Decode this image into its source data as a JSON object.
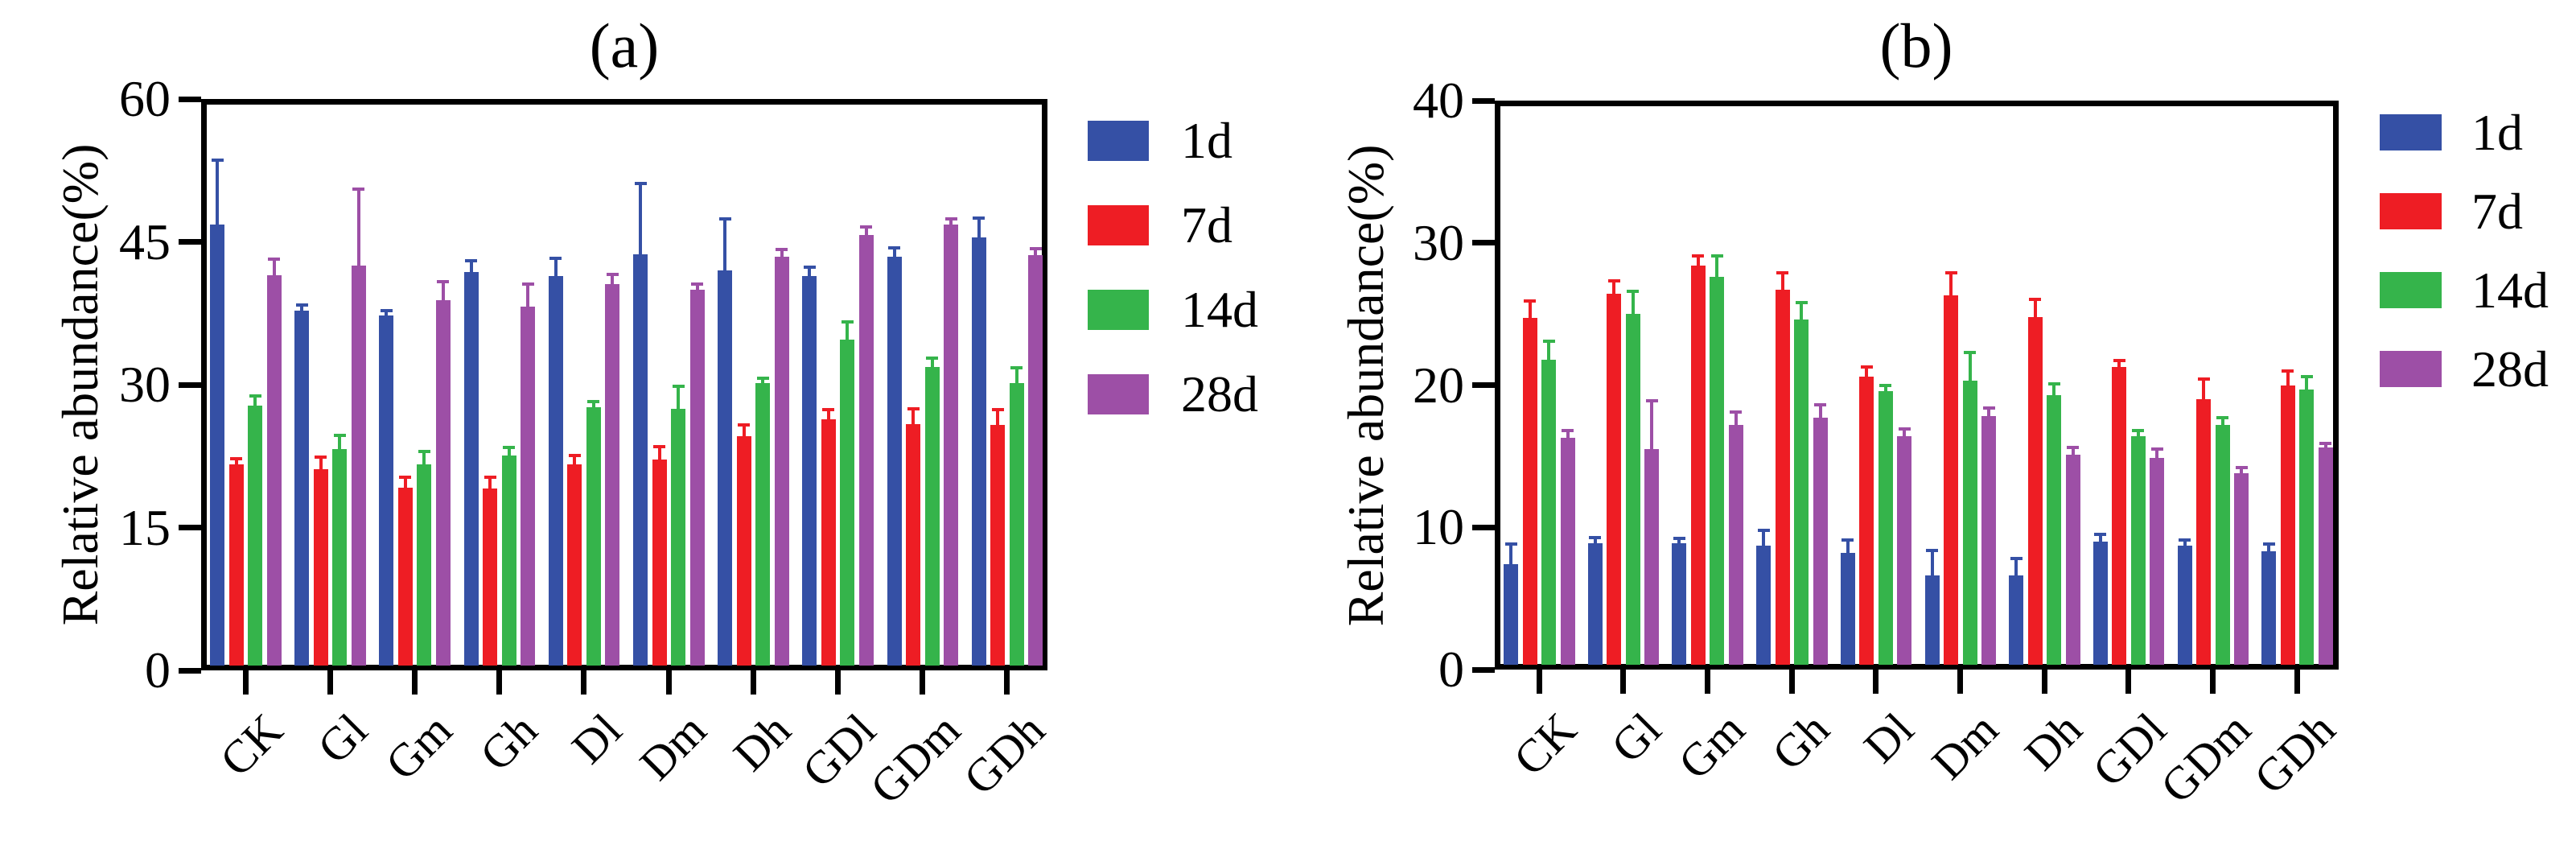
{
  "figure": {
    "background": "#ffffff",
    "text_color": "#000000",
    "axis_color": "#000000"
  },
  "chart_data": [
    {
      "id": "a",
      "type": "bar",
      "title": "(a)",
      "ylabel": "Relative abundance(%)",
      "xlabel": "",
      "ylim": [
        0,
        60
      ],
      "yticks": [
        0,
        15,
        30,
        45,
        60
      ],
      "grid": false,
      "legend_position": "right",
      "error_bars": true,
      "categories": [
        "CK",
        "Gl",
        "Gm",
        "Gh",
        "Dl",
        "Dm",
        "Dh",
        "GDl",
        "GDm",
        "GDh"
      ],
      "series": [
        {
          "name": "1d",
          "color": "#3550a5",
          "values": [
            46.8,
            37.8,
            37.3,
            41.8,
            41.4,
            43.7,
            42.0,
            41.4,
            43.4,
            45.5
          ],
          "errors": [
            6.8,
            0.6,
            0.5,
            1.2,
            1.9,
            7.4,
            5.4,
            0.9,
            1.0,
            2.0
          ]
        },
        {
          "name": "7d",
          "color": "#ee1d24",
          "values": [
            21.6,
            21.1,
            19.2,
            19.1,
            21.6,
            22.1,
            24.6,
            26.4,
            25.9,
            25.8
          ],
          "errors": [
            0.6,
            1.3,
            1.1,
            1.2,
            1.0,
            1.4,
            1.2,
            1.0,
            1.6,
            1.6
          ]
        },
        {
          "name": "14d",
          "color": "#35b44b",
          "values": [
            27.8,
            23.2,
            21.6,
            22.6,
            27.6,
            27.5,
            30.2,
            34.7,
            31.9,
            30.2
          ],
          "errors": [
            1.0,
            1.5,
            1.4,
            0.8,
            0.6,
            2.3,
            0.5,
            1.9,
            0.9,
            1.6
          ]
        },
        {
          "name": "28d",
          "color": "#9d4fa6",
          "values": [
            41.5,
            42.5,
            38.9,
            38.2,
            40.6,
            40.0,
            43.4,
            45.7,
            46.8,
            43.6
          ],
          "errors": [
            1.7,
            8.0,
            1.9,
            2.4,
            1.0,
            0.6,
            0.8,
            0.9,
            0.6,
            0.7
          ]
        }
      ]
    },
    {
      "id": "b",
      "type": "bar",
      "title": "(b)",
      "ylabel": "Relative abundance(%)",
      "xlabel": "",
      "ylim": [
        0,
        40
      ],
      "yticks": [
        0,
        10,
        20,
        30,
        40
      ],
      "grid": false,
      "legend_position": "right",
      "error_bars": true,
      "categories": [
        "CK",
        "Gl",
        "Gm",
        "Gh",
        "Dl",
        "Dm",
        "Dh",
        "GDl",
        "GDm",
        "GDh"
      ],
      "series": [
        {
          "name": "1d",
          "color": "#3550a5",
          "values": [
            7.4,
            8.9,
            8.9,
            8.7,
            8.2,
            6.6,
            6.6,
            9.0,
            8.7,
            8.3
          ],
          "errors": [
            1.4,
            0.4,
            0.3,
            1.1,
            0.9,
            1.8,
            1.2,
            0.5,
            0.4,
            0.5
          ]
        },
        {
          "name": "7d",
          "color": "#ee1d24",
          "values": [
            24.7,
            26.4,
            28.4,
            26.7,
            20.6,
            26.3,
            24.8,
            21.3,
            19.0,
            20.0
          ],
          "errors": [
            1.2,
            0.9,
            0.7,
            1.2,
            0.7,
            1.6,
            1.2,
            0.4,
            1.4,
            1.0
          ]
        },
        {
          "name": "14d",
          "color": "#35b44b",
          "values": [
            21.8,
            25.0,
            27.6,
            24.6,
            19.6,
            20.3,
            19.3,
            16.4,
            17.2,
            19.7
          ],
          "errors": [
            1.3,
            1.6,
            1.5,
            1.2,
            0.4,
            2.0,
            0.8,
            0.4,
            0.5,
            0.9
          ]
        },
        {
          "name": "28d",
          "color": "#9d4fa6",
          "values": [
            16.3,
            15.5,
            17.2,
            17.7,
            16.4,
            17.8,
            15.1,
            14.9,
            13.8,
            15.6
          ],
          "errors": [
            0.5,
            3.4,
            0.9,
            0.9,
            0.5,
            0.6,
            0.5,
            0.6,
            0.4,
            0.3
          ]
        }
      ]
    }
  ]
}
